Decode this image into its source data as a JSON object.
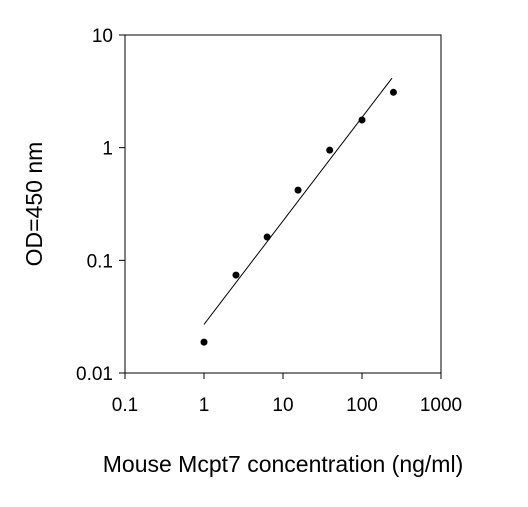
{
  "chart_data": {
    "type": "scatter",
    "x_label": "Mouse Mcpt7 concentration (ng/ml)",
    "y_label": "OD=450 nm",
    "x": [
      1,
      2.54,
      6.3,
      15.5,
      39,
      100,
      250
    ],
    "values": [
      0.0188,
      0.074,
      0.161,
      0.42,
      0.95,
      1.76,
      3.1
    ],
    "color": "#000000",
    "fit": {
      "x": [
        1,
        240
      ],
      "values": [
        0.027,
        4.15
      ],
      "color": "#000000"
    },
    "xlog": true,
    "ylog": true,
    "xlim": [
      0.1,
      1000
    ],
    "ylim": [
      0.01,
      10
    ],
    "xticks": [
      0.1,
      1,
      10,
      100,
      1000
    ],
    "yticks": [
      0.01,
      0.1,
      1,
      10
    ]
  }
}
